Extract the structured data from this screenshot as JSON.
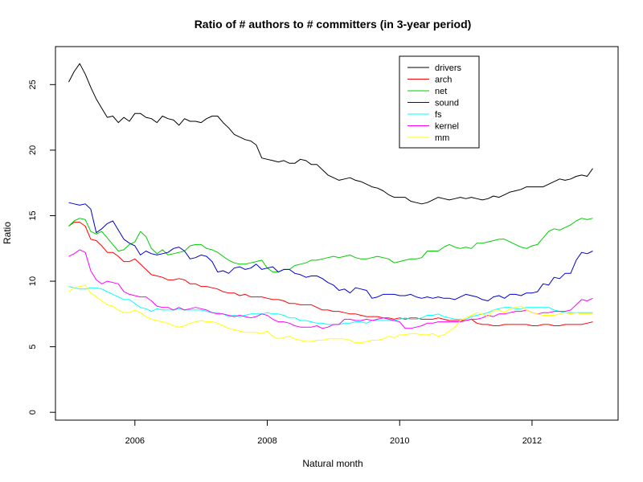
{
  "chart_data": {
    "type": "line",
    "title": "Ratio of # authors to # committers (in 3-year period)",
    "xlabel": "Natural month",
    "ylabel": "Ratio",
    "xlim": [
      2004.8,
      2013.3
    ],
    "ylim": [
      -0.6,
      27.9
    ],
    "x_ticks": [
      2006,
      2008,
      2010,
      2012
    ],
    "y_ticks": [
      0,
      5,
      10,
      15,
      20,
      25
    ],
    "grid": false,
    "legend_position": "top-right",
    "x_start": 2005.0,
    "x_end": 2012.917,
    "series": [
      {
        "name": "drivers",
        "color": "#000000",
        "values": [
          25.2,
          26.0,
          26.6,
          25.8,
          24.8,
          23.9,
          23.2,
          22.5,
          22.6,
          22.1,
          22.5,
          22.2,
          22.8,
          22.8,
          22.5,
          22.4,
          22.1,
          22.6,
          22.4,
          22.3,
          21.9,
          22.4,
          22.2,
          22.2,
          22.1,
          22.4,
          22.6,
          22.6,
          22.1,
          21.7,
          21.2,
          21.0,
          20.8,
          20.7,
          20.4,
          19.4,
          19.3,
          19.2,
          19.1,
          19.2,
          19.0,
          19.0,
          19.3,
          19.2,
          18.9,
          18.9,
          18.5,
          18.1,
          17.9,
          17.7,
          17.8,
          17.9,
          17.7,
          17.6,
          17.4,
          17.2,
          17.1,
          16.9,
          16.6,
          16.4,
          16.4,
          16.4,
          16.1,
          16.0,
          15.9,
          16.0,
          16.2,
          16.4,
          16.3,
          16.2,
          16.3,
          16.4,
          16.3,
          16.4,
          16.3,
          16.2,
          16.3,
          16.5,
          16.4,
          16.6,
          16.8,
          16.9,
          17.0,
          17.2,
          17.2,
          17.2,
          17.2,
          17.4,
          17.6,
          17.8,
          17.7,
          17.8,
          18.0,
          18.1,
          18.0,
          18.6
        ]
      },
      {
        "name": "arch",
        "color": "#ff0000",
        "values": [
          14.2,
          14.5,
          14.5,
          14.2,
          13.2,
          13.1,
          12.7,
          12.2,
          12.2,
          11.9,
          11.5,
          11.5,
          11.7,
          11.3,
          10.9,
          10.5,
          10.4,
          10.3,
          10.1,
          10.1,
          10.2,
          10.1,
          9.8,
          9.8,
          9.6,
          9.6,
          9.5,
          9.4,
          9.2,
          9.1,
          9.1,
          8.9,
          9.0,
          8.8,
          8.8,
          8.8,
          8.7,
          8.6,
          8.6,
          8.5,
          8.3,
          8.3,
          8.2,
          8.2,
          8.2,
          8.0,
          7.8,
          7.8,
          7.7,
          7.7,
          7.6,
          7.5,
          7.5,
          7.4,
          7.3,
          7.3,
          7.3,
          7.2,
          7.2,
          7.1,
          7.2,
          7.1,
          7.2,
          7.2,
          7.1,
          7.1,
          7.1,
          7.2,
          7.1,
          7.0,
          7.0,
          7.0,
          7.0,
          7.1,
          6.8,
          6.7,
          6.7,
          6.6,
          6.6,
          6.7,
          6.7,
          6.7,
          6.7,
          6.7,
          6.6,
          6.6,
          6.7,
          6.7,
          6.6,
          6.6,
          6.7,
          6.7,
          6.7,
          6.7,
          6.8,
          6.9
        ]
      },
      {
        "name": "net",
        "color": "#00cc00",
        "values": [
          14.2,
          14.6,
          14.8,
          14.7,
          13.8,
          13.6,
          13.8,
          13.3,
          12.8,
          12.3,
          12.4,
          12.8,
          13.0,
          13.8,
          13.4,
          12.5,
          12.1,
          12.4,
          12.0,
          12.1,
          12.2,
          12.3,
          12.7,
          12.8,
          12.8,
          12.5,
          12.4,
          12.2,
          11.9,
          11.6,
          11.4,
          11.3,
          11.3,
          11.4,
          11.5,
          11.6,
          11.0,
          10.7,
          10.7,
          10.9,
          10.9,
          11.2,
          11.3,
          11.4,
          11.6,
          11.6,
          11.7,
          11.8,
          11.9,
          11.8,
          11.9,
          12.0,
          11.8,
          11.7,
          11.7,
          11.8,
          11.9,
          11.8,
          11.7,
          11.4,
          11.5,
          11.6,
          11.7,
          11.7,
          11.8,
          12.3,
          12.3,
          12.3,
          12.6,
          12.8,
          12.6,
          12.5,
          12.6,
          12.5,
          12.9,
          12.9,
          13.0,
          13.1,
          13.2,
          13.2,
          13.0,
          12.8,
          12.6,
          12.5,
          12.7,
          12.8,
          13.3,
          13.8,
          14.0,
          13.9,
          14.1,
          14.3,
          14.6,
          14.8,
          14.7,
          14.8
        ]
      },
      {
        "name": "sound",
        "color": "#0000cc",
        "values": [
          16.0,
          15.9,
          15.8,
          15.9,
          15.5,
          13.7,
          14.0,
          14.4,
          14.6,
          13.9,
          13.2,
          12.9,
          12.7,
          12.0,
          12.3,
          12.1,
          12.0,
          12.1,
          12.2,
          12.5,
          12.6,
          12.3,
          11.7,
          11.8,
          12.0,
          11.9,
          11.5,
          10.7,
          10.8,
          10.6,
          11.0,
          11.1,
          10.9,
          11.0,
          11.3,
          10.9,
          11.0,
          11.1,
          10.7,
          10.9,
          10.9,
          10.6,
          10.5,
          10.3,
          10.4,
          10.4,
          10.2,
          9.9,
          9.7,
          9.3,
          9.4,
          9.1,
          9.5,
          9.4,
          9.3,
          8.7,
          8.8,
          9.0,
          9.0,
          9.0,
          8.9,
          8.9,
          9.0,
          8.8,
          8.7,
          8.8,
          8.7,
          8.8,
          8.7,
          8.7,
          8.6,
          8.8,
          9.0,
          8.9,
          8.8,
          8.6,
          8.5,
          8.8,
          8.9,
          8.7,
          9.0,
          9.0,
          8.9,
          9.1,
          9.1,
          9.2,
          9.8,
          9.7,
          10.3,
          10.2,
          10.6,
          10.6,
          11.6,
          12.2,
          12.1,
          12.3
        ]
      },
      {
        "name": "fs",
        "color": "#00ffff",
        "values": [
          9.6,
          9.5,
          9.4,
          9.4,
          9.5,
          9.5,
          9.4,
          9.2,
          9.0,
          8.8,
          8.6,
          8.6,
          8.3,
          8.0,
          7.9,
          7.7,
          7.9,
          7.8,
          7.8,
          7.8,
          7.9,
          7.8,
          7.8,
          7.8,
          7.8,
          7.7,
          7.6,
          7.6,
          7.5,
          7.3,
          7.4,
          7.3,
          7.4,
          7.5,
          7.5,
          7.5,
          7.6,
          7.5,
          7.5,
          7.4,
          7.2,
          7.2,
          7.0,
          7.0,
          6.9,
          6.8,
          6.8,
          6.7,
          6.7,
          6.7,
          6.8,
          6.8,
          6.9,
          6.9,
          6.8,
          7.0,
          7.0,
          7.0,
          7.0,
          7.0,
          7.1,
          7.2,
          7.1,
          7.1,
          7.2,
          7.4,
          7.4,
          7.5,
          7.3,
          7.2,
          7.1,
          7.1,
          7.1,
          7.3,
          7.4,
          7.5,
          7.6,
          7.8,
          7.9,
          8.0,
          8.0,
          7.9,
          7.9,
          8.0,
          8.0,
          8.0,
          8.0,
          8.0,
          7.8,
          7.7,
          7.6,
          7.6,
          7.6,
          7.6,
          7.6,
          7.6
        ]
      },
      {
        "name": "kernel",
        "color": "#ff00ff",
        "values": [
          11.9,
          12.1,
          12.4,
          12.2,
          10.8,
          10.1,
          9.8,
          10.0,
          9.9,
          9.8,
          9.2,
          9.0,
          8.9,
          8.8,
          8.8,
          8.5,
          8.1,
          8.0,
          8.0,
          7.8,
          8.0,
          7.8,
          7.9,
          8.0,
          7.9,
          7.8,
          7.6,
          7.5,
          7.5,
          7.4,
          7.3,
          7.4,
          7.3,
          7.2,
          7.3,
          7.5,
          7.4,
          7.1,
          6.9,
          6.9,
          6.8,
          6.6,
          6.5,
          6.5,
          6.5,
          6.6,
          6.4,
          6.5,
          6.7,
          6.7,
          7.1,
          7.1,
          7.0,
          7.0,
          7.1,
          7.0,
          7.1,
          7.2,
          7.1,
          7.0,
          6.9,
          6.4,
          6.4,
          6.5,
          6.6,
          6.8,
          6.8,
          6.9,
          6.9,
          6.9,
          6.9,
          6.9,
          7.0,
          7.1,
          7.1,
          7.2,
          7.4,
          7.3,
          7.5,
          7.5,
          7.6,
          7.7,
          7.7,
          7.8,
          7.6,
          7.5,
          7.6,
          7.6,
          7.7,
          7.7,
          7.7,
          7.8,
          8.2,
          8.6,
          8.5,
          8.7
        ]
      },
      {
        "name": "mm",
        "color": "#ffff00",
        "values": [
          9.2,
          9.5,
          9.6,
          9.7,
          9.1,
          8.8,
          8.5,
          8.2,
          8.1,
          7.8,
          7.6,
          7.6,
          7.8,
          7.6,
          7.3,
          7.1,
          7.0,
          6.9,
          6.8,
          6.6,
          6.5,
          6.6,
          6.8,
          6.9,
          7.0,
          6.9,
          6.9,
          6.8,
          6.6,
          6.4,
          6.3,
          6.2,
          6.1,
          6.1,
          6.1,
          6.0,
          6.2,
          5.8,
          5.6,
          5.7,
          5.8,
          5.6,
          5.5,
          5.4,
          5.4,
          5.5,
          5.5,
          5.6,
          5.6,
          5.6,
          5.6,
          5.5,
          5.3,
          5.3,
          5.4,
          5.5,
          5.5,
          5.6,
          5.8,
          5.7,
          5.9,
          5.9,
          6.0,
          6.0,
          5.9,
          5.9,
          6.0,
          5.8,
          5.9,
          6.2,
          6.5,
          7.0,
          7.2,
          7.4,
          7.6,
          7.5,
          7.3,
          7.8,
          7.8,
          7.6,
          7.9,
          8.0,
          8.1,
          7.8,
          7.6,
          7.5,
          7.4,
          7.4,
          7.4,
          7.5,
          7.6,
          7.5,
          7.6,
          7.5,
          7.5,
          7.5
        ]
      }
    ]
  }
}
